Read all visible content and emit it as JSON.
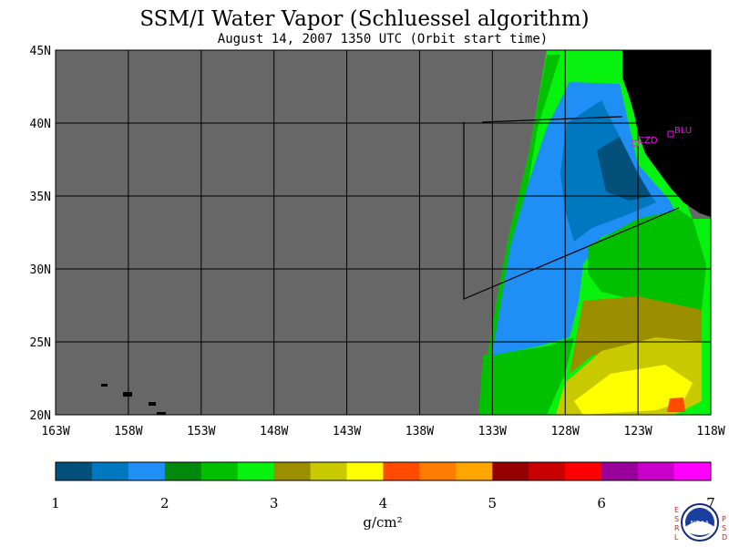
{
  "title": "SSM/I Water Vapor (Schluessel algorithm)",
  "subtitle": "August 14, 2007  1350 UTC  (Orbit start time)",
  "map": {
    "lat_labels": [
      "45N",
      "40N",
      "35N",
      "30N",
      "25N",
      "20N"
    ],
    "lon_labels": [
      "163W",
      "158W",
      "153W",
      "148W",
      "143W",
      "138W",
      "133W",
      "128W",
      "123W",
      "118W"
    ],
    "sites": [
      {
        "name": "CZD"
      },
      {
        "name": "BLU"
      }
    ],
    "colors": {
      "no_data": "#676767",
      "land": "#000000",
      "grid": "#000000",
      "site": "#ff00ff"
    }
  },
  "colorbar": {
    "colors": [
      "#03507a",
      "#0078c0",
      "#1f8ef5",
      "#00890c",
      "#00c000",
      "#08f20f",
      "#9b8f00",
      "#c9c900",
      "#ffff00",
      "#ff4b00",
      "#ff7c00",
      "#ffa500",
      "#950000",
      "#c90000",
      "#ff0000",
      "#990099",
      "#c900c9",
      "#ff00ff"
    ],
    "tick_labels": [
      "1",
      "2",
      "3",
      "4",
      "5",
      "6",
      "7"
    ],
    "unit": "g/cm²"
  },
  "logo": {
    "left_text": "ESRL",
    "right_text": "PSD",
    "center_text": "NOAA"
  }
}
